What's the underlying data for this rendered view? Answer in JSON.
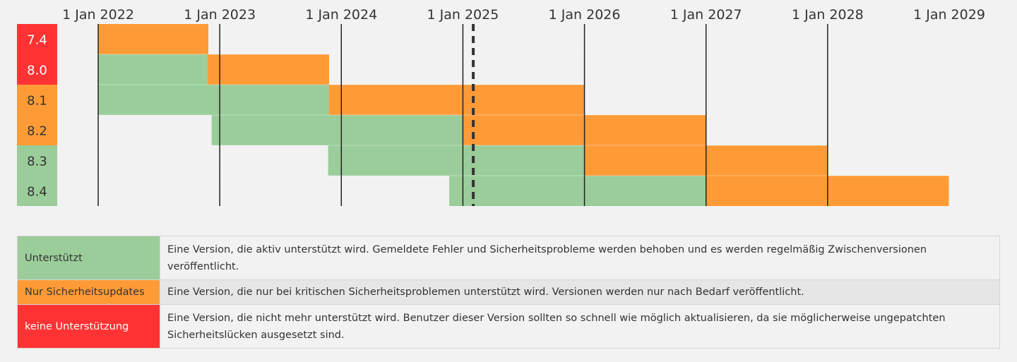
{
  "chart_data": {
    "type": "gantt",
    "x_axis": {
      "ticks": [
        "1 Jan 2022",
        "1 Jan 2023",
        "1 Jan 2024",
        "1 Jan 2025",
        "1 Jan 2026",
        "1 Jan 2027",
        "1 Jan 2028",
        "1 Jan 2029"
      ],
      "range": [
        "2022-01-01",
        "2029-01-01"
      ]
    },
    "today_marker": "2025-02-01",
    "versions": [
      {
        "name": "7.4",
        "status": "eol",
        "active_start": null,
        "security_start": "2022-01-01",
        "end": "2022-11-28"
      },
      {
        "name": "8.0",
        "status": "eol",
        "active_start": "2022-01-01",
        "security_start": "2022-11-26",
        "end": "2023-11-26"
      },
      {
        "name": "8.1",
        "status": "security",
        "active_start": "2022-01-01",
        "security_start": "2023-11-25",
        "end": "2025-12-31"
      },
      {
        "name": "8.2",
        "status": "security",
        "active_start": "2022-12-08",
        "security_start": "2024-12-31",
        "end": "2026-12-31"
      },
      {
        "name": "8.3",
        "status": "active",
        "active_start": "2023-11-23",
        "security_start": "2025-12-31",
        "end": "2027-12-31"
      },
      {
        "name": "8.4",
        "status": "active",
        "active_start": "2024-11-21",
        "security_start": "2026-12-31",
        "end": "2028-12-31"
      }
    ]
  },
  "colors": {
    "active": "#9bcd9a",
    "security": "#ff9b37",
    "eol": "#ff3333",
    "grid": "#222222",
    "today": "#333333"
  },
  "legend": [
    {
      "key": "Unterstützt",
      "desc": "Eine Version, die aktiv unterstützt wird. Gemeldete Fehler und Sicherheitsprobleme werden behoben und es werden regelmäßig Zwischenversionen veröffentlicht."
    },
    {
      "key": "Nur Sicherheitsupdates",
      "desc": "Eine Version, die nur bei kritischen Sicherheitsproblemen unterstützt wird. Versionen werden nur nach Bedarf veröffentlicht."
    },
    {
      "key": "keine Unterstützung",
      "desc": "Eine Version, die nicht mehr unterstützt wird. Benutzer dieser Version sollten so schnell wie möglich aktualisieren, da sie möglicherweise ungepatchten Sicherheitslücken ausgesetzt sind."
    }
  ]
}
